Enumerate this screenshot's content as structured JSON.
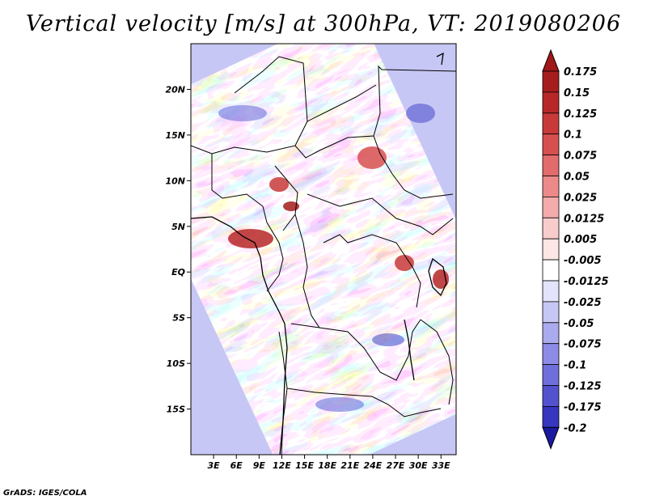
{
  "title": "Vertical velocity [m/s] at 300hPa, VT: 2019080206",
  "footer": "GrADS: IGES/COLA",
  "map": {
    "lat_range": [
      -20,
      25
    ],
    "lon_range": [
      0,
      35
    ],
    "lat_ticks": [
      {
        "lat": 20,
        "label": "20N"
      },
      {
        "lat": 15,
        "label": "15N"
      },
      {
        "lat": 10,
        "label": "10N"
      },
      {
        "lat": 5,
        "label": "5N"
      },
      {
        "lat": 0,
        "label": "EQ"
      },
      {
        "lat": -5,
        "label": "5S"
      },
      {
        "lat": -10,
        "label": "10S"
      },
      {
        "lat": -15,
        "label": "15S"
      }
    ],
    "lon_ticks": [
      {
        "lon": 3,
        "label": "3E"
      },
      {
        "lon": 6,
        "label": "6E"
      },
      {
        "lon": 9,
        "label": "9E"
      },
      {
        "lon": 12,
        "label": "12E"
      },
      {
        "lon": 15,
        "label": "15E"
      },
      {
        "lon": 18,
        "label": "18E"
      },
      {
        "lon": 21,
        "label": "21E"
      },
      {
        "lon": 24,
        "label": "24E"
      },
      {
        "lon": 27,
        "label": "27E"
      },
      {
        "lon": 30,
        "label": "30E"
      },
      {
        "lon": 33,
        "label": "33E"
      }
    ]
  },
  "colorbar": {
    "levels": [
      {
        "label": "0.175",
        "color": "#a51d1d"
      },
      {
        "label": "0.15",
        "color": "#b82727"
      },
      {
        "label": "0.125",
        "color": "#c83a3a"
      },
      {
        "label": "0.1",
        "color": "#d75050"
      },
      {
        "label": "0.075",
        "color": "#e26b6b"
      },
      {
        "label": "0.05",
        "color": "#ec8a8a"
      },
      {
        "label": "0.025",
        "color": "#f4abab"
      },
      {
        "label": "0.0125",
        "color": "#f9cccc"
      },
      {
        "label": "0.005",
        "color": "#fde6e6"
      },
      {
        "label": "-0.005",
        "color": "#ffffff"
      },
      {
        "label": "-0.0125",
        "color": "#e3e3fb"
      },
      {
        "label": "-0.025",
        "color": "#c7c7f5"
      },
      {
        "label": "-0.05",
        "color": "#aaaaef"
      },
      {
        "label": "-0.075",
        "color": "#8c8ce6"
      },
      {
        "label": "-0.1",
        "color": "#6f6fdc"
      },
      {
        "label": "-0.125",
        "color": "#5252cf"
      },
      {
        "label": "-0.175",
        "color": "#3636bf"
      },
      {
        "label": "-0.2",
        "color": "#2020a8"
      }
    ],
    "top_cap_color": "#a01818",
    "bottom_cap_color": "#1a1aa0"
  }
}
